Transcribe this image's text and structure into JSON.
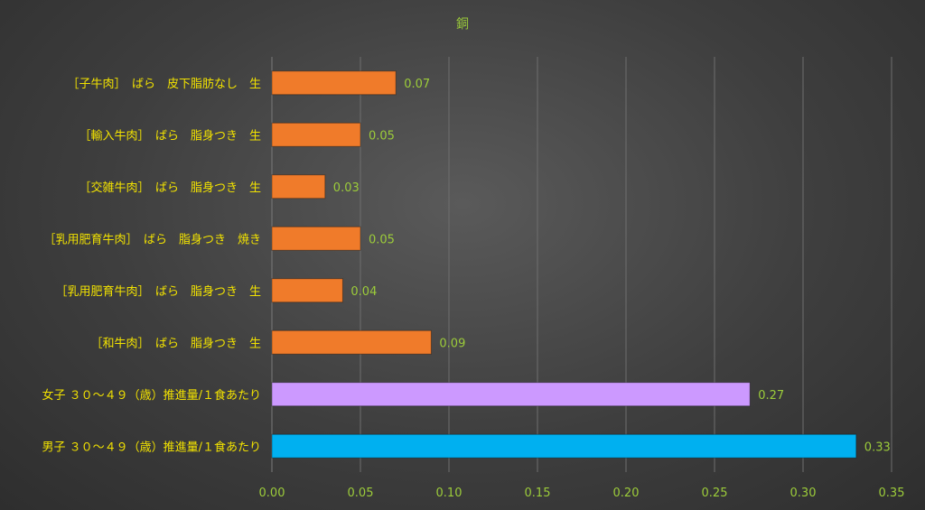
{
  "chart_data": {
    "type": "bar",
    "orientation": "horizontal",
    "title": "銅",
    "categories": [
      "［子牛肉］　ばら　皮下脂肪なし　生",
      "［輸入牛肉］　ばら　脂身つき　生",
      "［交雑牛肉］　ばら　脂身つき　生",
      "［乳用肥育牛肉］　ばら　脂身つき　焼き",
      "［乳用肥育牛肉］　ばら　脂身つき　生",
      "［和牛肉］　ばら　脂身つき　生",
      "女子 ３０～４９（歳）推進量/１食あたり",
      "男子 ３０～４９（歳）推進量/１食あたり"
    ],
    "values": [
      0.07,
      0.05,
      0.03,
      0.05,
      0.04,
      0.09,
      0.27,
      0.33
    ],
    "value_labels": [
      "0.07",
      "0.05",
      "0.03",
      "0.05",
      "0.04",
      "0.09",
      "0.27",
      "0.33"
    ],
    "bar_colors": [
      "#f07b2a",
      "#f07b2a",
      "#f07b2a",
      "#f07b2a",
      "#f07b2a",
      "#f07b2a",
      "#cc99ff",
      "#00b0f0"
    ],
    "xlim": [
      0,
      0.35
    ],
    "xticks": [
      "0.00",
      "0.05",
      "0.10",
      "0.15",
      "0.20",
      "0.25",
      "0.30",
      "0.35"
    ],
    "grid": "vertical",
    "legend": "none"
  }
}
